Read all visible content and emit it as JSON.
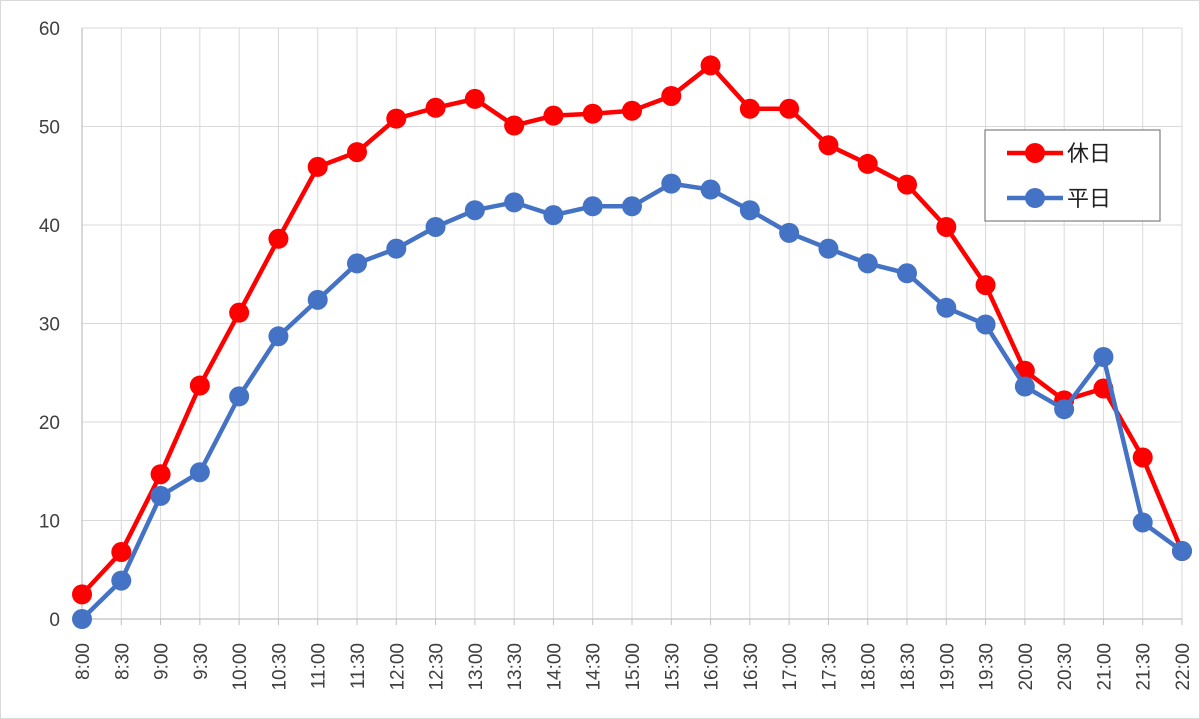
{
  "chart_data": {
    "type": "line",
    "title": "",
    "xlabel": "",
    "ylabel": "",
    "x": [
      "8:00",
      "8:30",
      "9:00",
      "9:30",
      "10:00",
      "10:30",
      "11:00",
      "11:30",
      "12:00",
      "12:30",
      "13:00",
      "13:30",
      "14:00",
      "14:30",
      "15:00",
      "15:30",
      "16:00",
      "16:30",
      "17:00",
      "17:30",
      "18:00",
      "18:30",
      "19:00",
      "19:30",
      "20:00",
      "20:30",
      "21:00",
      "21:30",
      "22:00"
    ],
    "ylim": [
      0,
      60
    ],
    "yticks": [
      0,
      10,
      20,
      30,
      40,
      50,
      60
    ],
    "grid": true,
    "legend_position": "right",
    "series": [
      {
        "name": "休日",
        "color": "#ff0000",
        "values": [
          2.5,
          6.8,
          14.7,
          23.7,
          31.1,
          38.6,
          45.9,
          47.4,
          50.8,
          51.9,
          52.8,
          50.1,
          51.1,
          51.3,
          51.6,
          53.1,
          56.2,
          51.8,
          51.8,
          48.1,
          46.2,
          44.1,
          39.8,
          33.9,
          25.2,
          22.2,
          23.4,
          16.4,
          6.9
        ]
      },
      {
        "name": "平日",
        "color": "#4472c4",
        "values": [
          0.0,
          3.9,
          12.5,
          14.9,
          22.6,
          28.7,
          32.4,
          36.1,
          37.6,
          39.8,
          41.5,
          42.3,
          41.0,
          41.9,
          41.9,
          44.2,
          43.6,
          41.5,
          39.2,
          37.6,
          36.1,
          35.1,
          31.6,
          29.9,
          23.6,
          21.3,
          26.6,
          9.8,
          6.9
        ]
      }
    ]
  }
}
